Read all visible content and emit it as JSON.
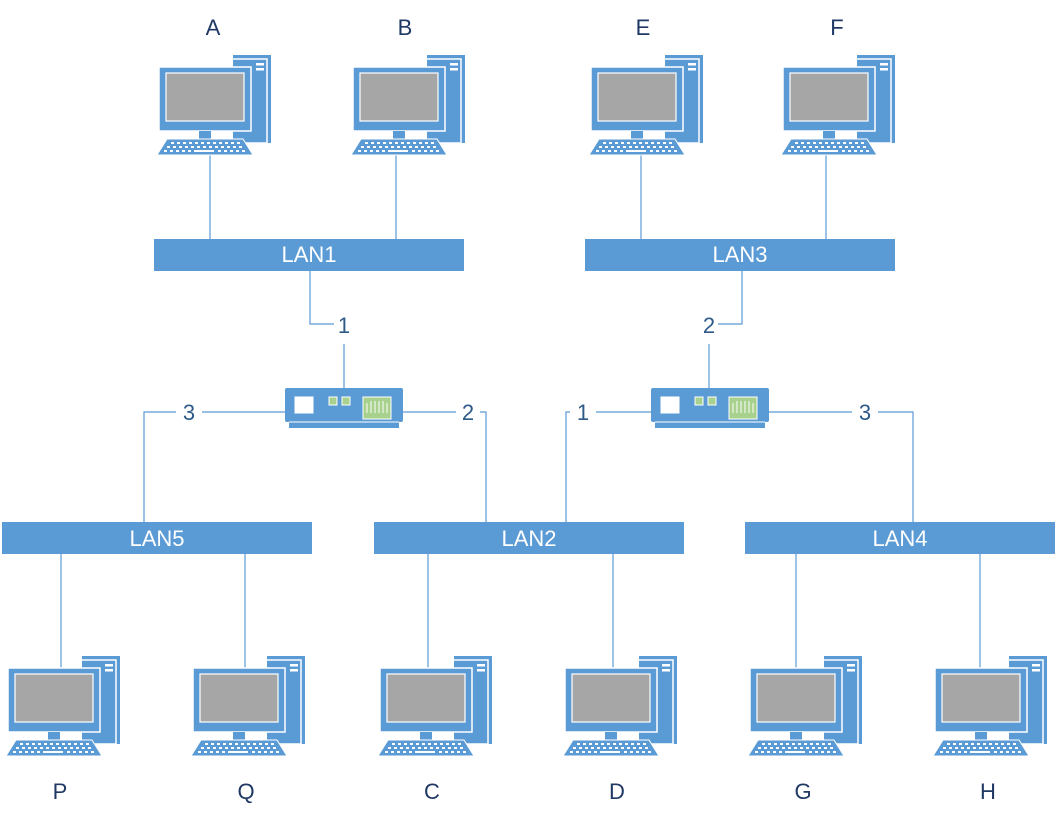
{
  "diagram": {
    "title": "",
    "hosts": [
      {
        "id": "A",
        "label": "A"
      },
      {
        "id": "B",
        "label": "B"
      },
      {
        "id": "E",
        "label": "E"
      },
      {
        "id": "F",
        "label": "F"
      },
      {
        "id": "P",
        "label": "P"
      },
      {
        "id": "Q",
        "label": "Q"
      },
      {
        "id": "C",
        "label": "C"
      },
      {
        "id": "D",
        "label": "D"
      },
      {
        "id": "G",
        "label": "G"
      },
      {
        "id": "H",
        "label": "H"
      }
    ],
    "lans": [
      {
        "id": "LAN1",
        "label": "LAN1"
      },
      {
        "id": "LAN3",
        "label": "LAN3"
      },
      {
        "id": "LAN5",
        "label": "LAN5"
      },
      {
        "id": "LAN2",
        "label": "LAN2"
      },
      {
        "id": "LAN4",
        "label": "LAN4"
      }
    ],
    "bridges": [
      {
        "id": "bridge-1",
        "ports": [
          {
            "label": "1",
            "lan": "LAN1"
          },
          {
            "label": "2",
            "lan": "LAN2"
          },
          {
            "label": "3",
            "lan": "LAN5"
          }
        ]
      },
      {
        "id": "bridge-2",
        "ports": [
          {
            "label": "1",
            "lan": "LAN2"
          },
          {
            "label": "2",
            "lan": "LAN3"
          },
          {
            "label": "3",
            "lan": "LAN4"
          }
        ]
      }
    ],
    "colors": {
      "primary": "#5b9bd5",
      "screen": "#a6a6a6",
      "port_green": "#a9d18e",
      "label_dark": "#1f3864"
    }
  }
}
